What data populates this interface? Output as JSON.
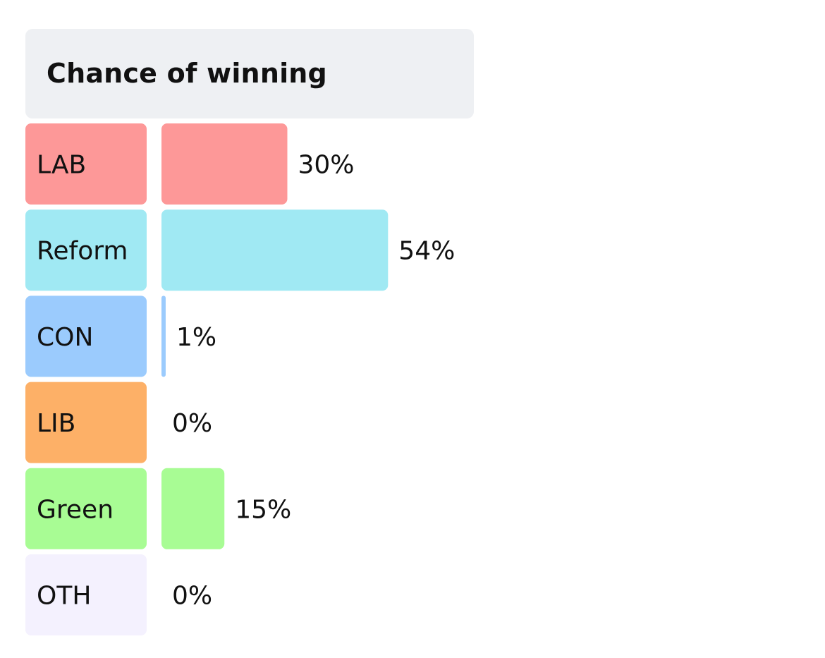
{
  "header": {
    "title": "Chance of winning"
  },
  "chart_data": {
    "type": "bar",
    "title": "Chance of winning",
    "orientation": "horizontal",
    "categories": [
      "LAB",
      "Reform",
      "CON",
      "LIB",
      "Green",
      "OTH"
    ],
    "values": [
      30,
      54,
      1,
      0,
      15,
      0
    ],
    "value_labels": [
      "30%",
      "54%",
      "1%",
      "0%",
      "15%",
      "0%"
    ],
    "unit": "%",
    "xlim": [
      0,
      100
    ],
    "colors": [
      "#fd9898",
      "#a0e9f3",
      "#9bcbfd",
      "#fdb067",
      "#a8fc94",
      "#f4f1fe"
    ],
    "grid": false,
    "legend": "none"
  }
}
